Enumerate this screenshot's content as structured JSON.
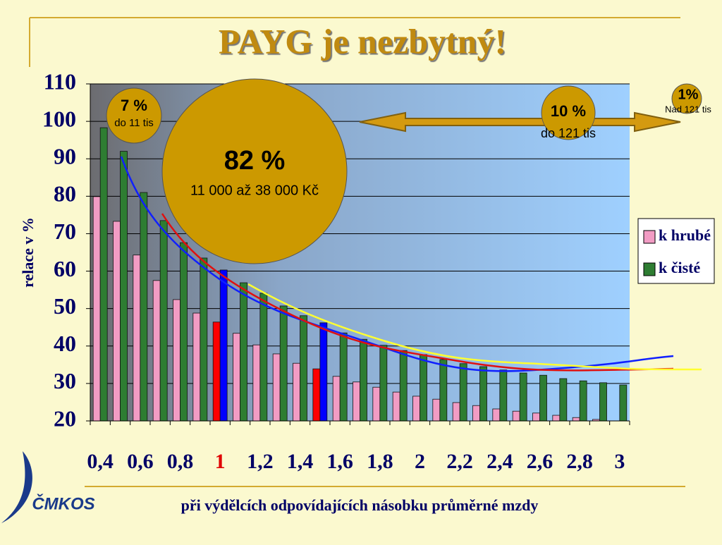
{
  "title": "PAYG je nezbytný!",
  "logo": "ČMKOS",
  "chart_data": {
    "type": "bar",
    "y_label": "relace v  %",
    "x_label": "při výdělcích odpovídajících násobku průměrné mzdy",
    "categories": [
      "0,4",
      null,
      "0,6",
      null,
      "0,8",
      null,
      "1",
      null,
      "1,2",
      null,
      "1,4",
      null,
      "1,6",
      null,
      "1,8",
      null,
      "2",
      null,
      "2,2",
      null,
      "2,4",
      null,
      "2,6",
      null,
      "2,8",
      null,
      "3"
    ],
    "category_colors": [
      "#000066",
      "#000066",
      "#000066",
      "#000066",
      "#000066",
      "#000066",
      "#e00000",
      "#000066",
      "#000066",
      "#000066",
      "#000066",
      "#000066",
      "#000066",
      "#000066",
      "#000066",
      "#000066",
      "#000066",
      "#000066",
      "#000066",
      "#000066",
      "#000066",
      "#000066",
      "#000066",
      "#000066",
      "#000066",
      "#000066",
      "#000066"
    ],
    "series": [
      {
        "name": "k hrubé",
        "color": "#f29cc4",
        "colors": [
          "#f29cc4",
          "#f29cc4",
          "#f29cc4",
          "#f29cc4",
          "#f29cc4",
          "#f29cc4",
          "#ff0000",
          "#f29cc4",
          "#f29cc4",
          "#f29cc4",
          "#f29cc4",
          "#ff0000",
          "#f29cc4",
          "#f29cc4",
          "#f29cc4",
          "#f29cc4",
          "#f29cc4",
          "#f29cc4",
          "#f29cc4",
          "#f29cc4",
          "#f29cc4",
          "#f29cc4",
          "#f29cc4",
          "#f29cc4",
          "#f29cc4",
          "#f29cc4",
          "#f29cc4"
        ],
        "values": [
          79.9,
          73.3,
          64.3,
          57.5,
          52.4,
          48.8,
          46.4,
          43.4,
          40.3,
          37.9,
          35.4,
          33.9,
          31.9,
          30.4,
          29.0,
          27.7,
          26.6,
          25.8,
          24.9,
          24.1,
          23.2,
          22.6,
          22.1,
          21.5,
          20.9,
          20.4,
          null
        ]
      },
      {
        "name": "k čisté",
        "color": "#2e7d32",
        "colors": [
          "#2e7d32",
          "#2e7d32",
          "#2e7d32",
          "#2e7d32",
          "#2e7d32",
          "#2e7d32",
          "#0000ff",
          "#2e7d32",
          "#2e7d32",
          "#2e7d32",
          "#2e7d32",
          "#0000ff",
          "#2e7d32",
          "#2e7d32",
          "#2e7d32",
          "#2e7d32",
          "#2e7d32",
          "#2e7d32",
          "#2e7d32",
          "#2e7d32",
          "#2e7d32",
          "#2e7d32",
          "#2e7d32",
          "#2e7d32",
          "#2e7d32",
          "#2e7d32",
          "#2e7d32"
        ],
        "values": [
          98.3,
          92.0,
          81.0,
          73.5,
          67.6,
          63.5,
          60.3,
          56.9,
          54.1,
          50.7,
          48.1,
          46.2,
          43.5,
          41.8,
          40.2,
          38.8,
          37.7,
          36.4,
          35.3,
          34.5,
          33.6,
          32.8,
          32.2,
          31.3,
          30.7,
          30.2,
          29.6
        ]
      }
    ],
    "ylim": [
      20,
      110
    ],
    "yticks": [
      20,
      30,
      40,
      50,
      60,
      70,
      80,
      90,
      100,
      110
    ],
    "grid": true,
    "legend": "right",
    "annotations": [
      {
        "label": "7 %",
        "sub": "do 11 tis"
      },
      {
        "label": "82 %",
        "sub": "11 000 až 38 000 Kč"
      },
      {
        "label": "10 %",
        "sub": "do 121 tis"
      },
      {
        "label": "1%",
        "sub": "Nad 121 tis"
      }
    ]
  }
}
